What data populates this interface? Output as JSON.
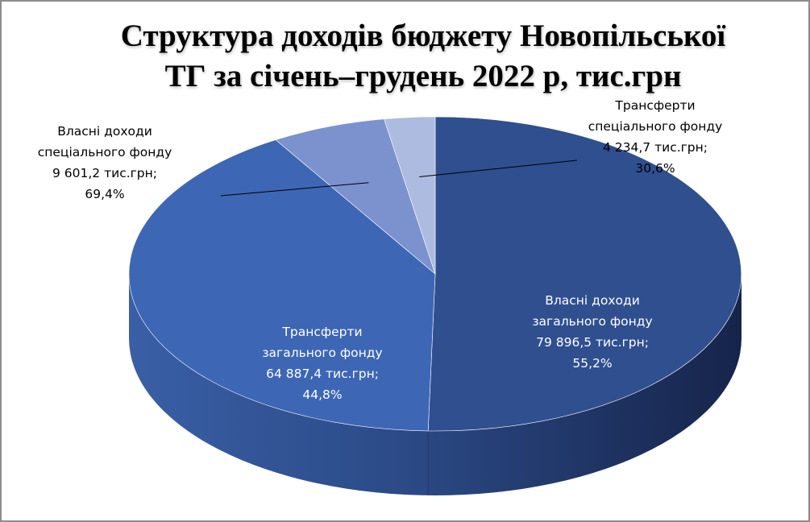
{
  "title_lines": [
    "Структура доходів бюджету Новопільської",
    "ТГ за січень–грудень 2022 р, тис.грн"
  ],
  "chart_data": {
    "type": "pie",
    "title": "Структура доходів бюджету Новопільської ТГ за січень–грудень 2022 р, тис.грн",
    "unit": "тис.грн",
    "slices": [
      {
        "name": "Власні доходи загального фонду",
        "value": 79896.5,
        "percent_label": "55,2%",
        "value_label": "79 896,5 тис.грн;",
        "label_lines": [
          "Власні доходи",
          "загального фонду",
          "79 896,5 тис.грн;",
          "55,2%"
        ],
        "color": "#2f4f8f"
      },
      {
        "name": "Трансферти загального фонду",
        "value": 64887.4,
        "percent_label": "44,8%",
        "value_label": "64 887,4 тис.грн;",
        "label_lines": [
          "Трансферти",
          "загального фонду",
          "64 887,4 тис.грн;",
          "44,8%"
        ],
        "color": "#3d66b5"
      },
      {
        "name": "Власні доходи спеціального фонду",
        "value": 9601.2,
        "percent_label": "69,4%",
        "value_label": "9 601,2 тис.грн;",
        "label_lines": [
          "Власні доходи",
          "спеціального фонду",
          "9 601,2 тис.грн;",
          "69,4%"
        ],
        "color": "#7b92cf"
      },
      {
        "name": "Трансферти спеціального фонду",
        "value": 4234.7,
        "percent_label": "30,6%",
        "value_label": "4 234,7 тис.грн;",
        "label_lines": [
          "Трансферти",
          "спеціального фонду",
          "4 234,7 тис.грн;",
          "30,6%"
        ],
        "color": "#aebbe0"
      }
    ],
    "legend": "none",
    "style": "3d-exploded-ellipse"
  }
}
